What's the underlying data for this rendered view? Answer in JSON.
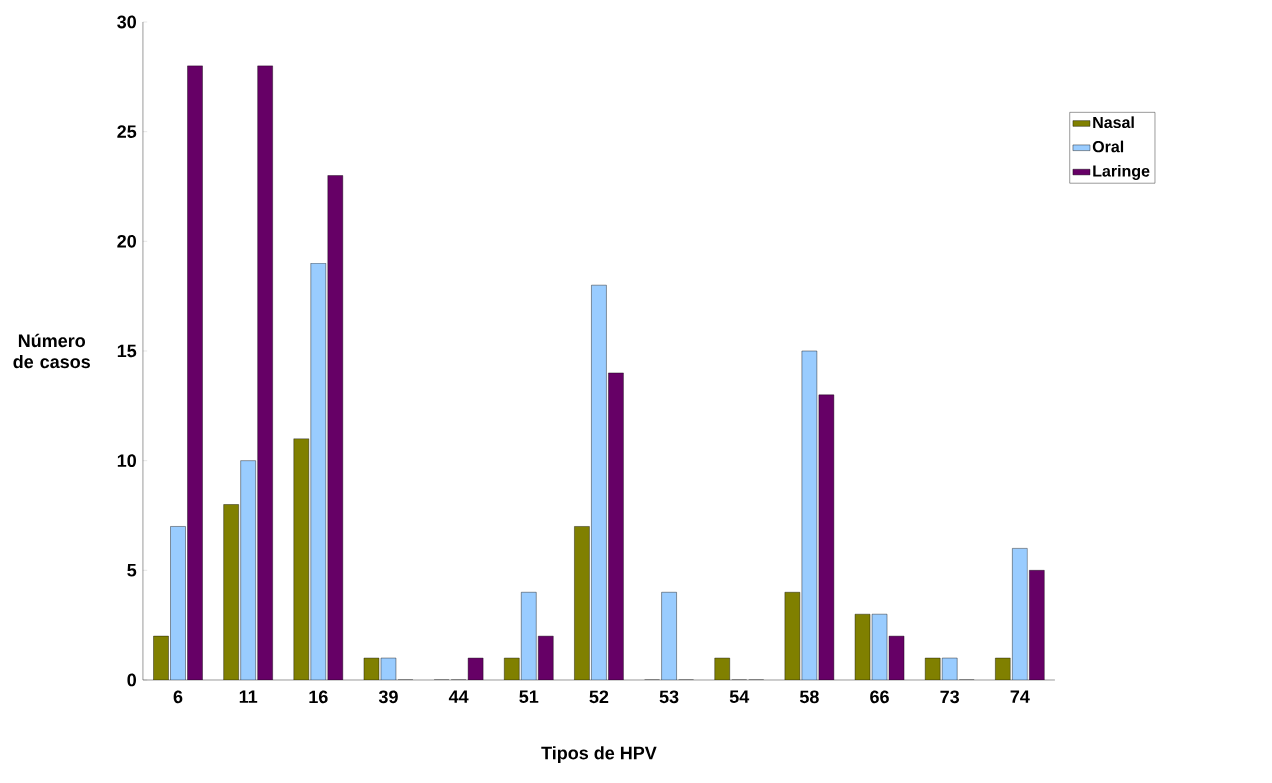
{
  "chart_data": {
    "type": "bar",
    "xlabel": "Tipos de HPV",
    "ylabel": "Número de casos",
    "categories": [
      "6",
      "11",
      "16",
      "39",
      "44",
      "51",
      "52",
      "53",
      "54",
      "58",
      "66",
      "73",
      "74"
    ],
    "series": [
      {
        "name": "Nasal",
        "color": "#808000",
        "values": [
          2,
          8,
          11,
          1,
          0,
          1,
          7,
          0,
          1,
          4,
          3,
          1,
          1
        ]
      },
      {
        "name": "Oral",
        "color": "#99ccff",
        "values": [
          7,
          10,
          19,
          1,
          0,
          4,
          18,
          4,
          0,
          15,
          3,
          1,
          6
        ]
      },
      {
        "name": "Laringe",
        "color": "#660066",
        "values": [
          28,
          28,
          23,
          0,
          1,
          2,
          14,
          0,
          0,
          13,
          2,
          0,
          5
        ]
      }
    ],
    "ylim": [
      0,
      30
    ],
    "yticks": [
      0,
      5,
      10,
      15,
      20,
      25,
      30
    ],
    "grid": false,
    "legend": "right"
  }
}
